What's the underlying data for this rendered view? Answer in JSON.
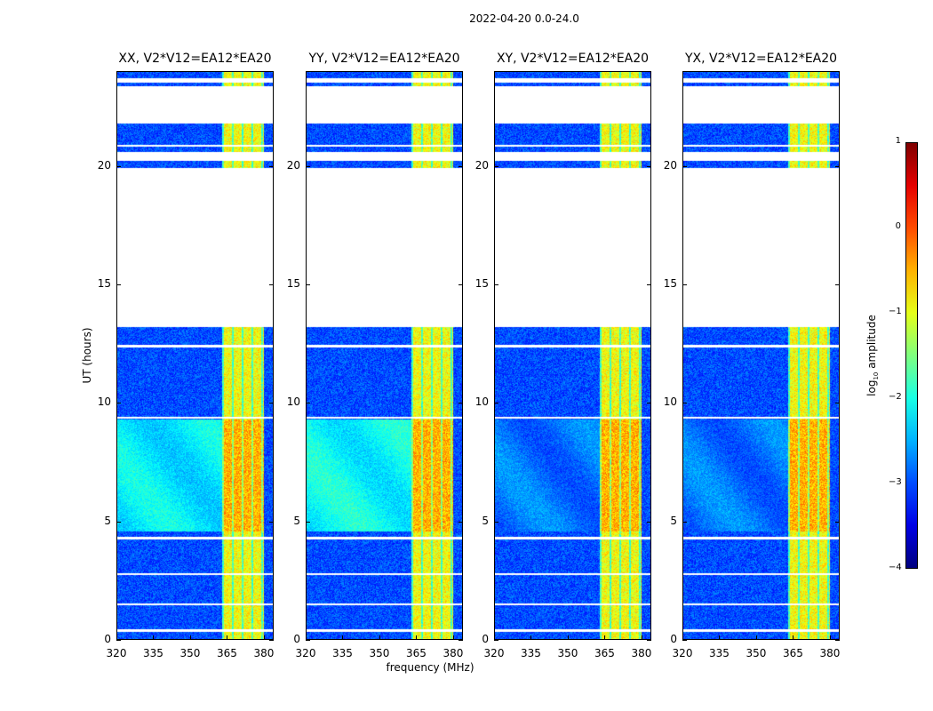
{
  "chart_data": {
    "type": "heatmap",
    "title": "2022-04-20 0.0-24.0",
    "xlabel": "frequency (MHz)",
    "ylabel": "UT (hours)",
    "xlim": [
      320,
      384
    ],
    "ylim": [
      0,
      24
    ],
    "xticks": [
      "320",
      "335",
      "350",
      "365",
      "380"
    ],
    "xtick_values": [
      320,
      335,
      350,
      365,
      380
    ],
    "yticks": [
      "0",
      "5",
      "10",
      "15",
      "20"
    ],
    "ytick_values": [
      0,
      5,
      10,
      15,
      20
    ],
    "panels": [
      {
        "title": "XX, V2*V12=EA12*EA20",
        "enhanced_hours": [
          4.6,
          9.3
        ],
        "enhanced_level": -2.2
      },
      {
        "title": "YY, V2*V12=EA12*EA20",
        "enhanced_hours": [
          4.6,
          9.3
        ],
        "enhanced_level": -2.1
      },
      {
        "title": "XY, V2*V12=EA12*EA20",
        "enhanced_hours": [
          4.6,
          9.3
        ],
        "enhanced_level": -2.8
      },
      {
        "title": "YX, V2*V12=EA12*EA20",
        "enhanced_hours": [
          4.6,
          9.3
        ],
        "enhanced_level": -2.8
      }
    ],
    "data_hour_ranges": [
      [
        0,
        0.35
      ],
      [
        0.45,
        1.45
      ],
      [
        1.55,
        2.55
      ],
      [
        2.55,
        2.75
      ],
      [
        2.8,
        4.25
      ],
      [
        4.35,
        9.35
      ],
      [
        9.4,
        12.35
      ],
      [
        12.45,
        13.2
      ],
      [
        19.9,
        20.2
      ],
      [
        20.6,
        20.8
      ],
      [
        20.9,
        21.6
      ],
      [
        21.6,
        21.8
      ],
      [
        23.35,
        23.5
      ],
      [
        23.7,
        24
      ]
    ],
    "rfi_band_mhz": [
      363,
      380
    ],
    "rfi_level": -0.9,
    "baseline_level": -3.0,
    "colorbar": {
      "label": "log10 amplitude",
      "label_main": "log",
      "label_sub": "10",
      "label_rest": " amplitude",
      "range": [
        -4,
        1
      ],
      "ticks": [
        "1",
        "0",
        "−1",
        "−2",
        "−3",
        "−4"
      ],
      "tick_values": [
        1,
        0,
        -1,
        -2,
        -3,
        -4
      ],
      "colormap": "jet"
    }
  }
}
